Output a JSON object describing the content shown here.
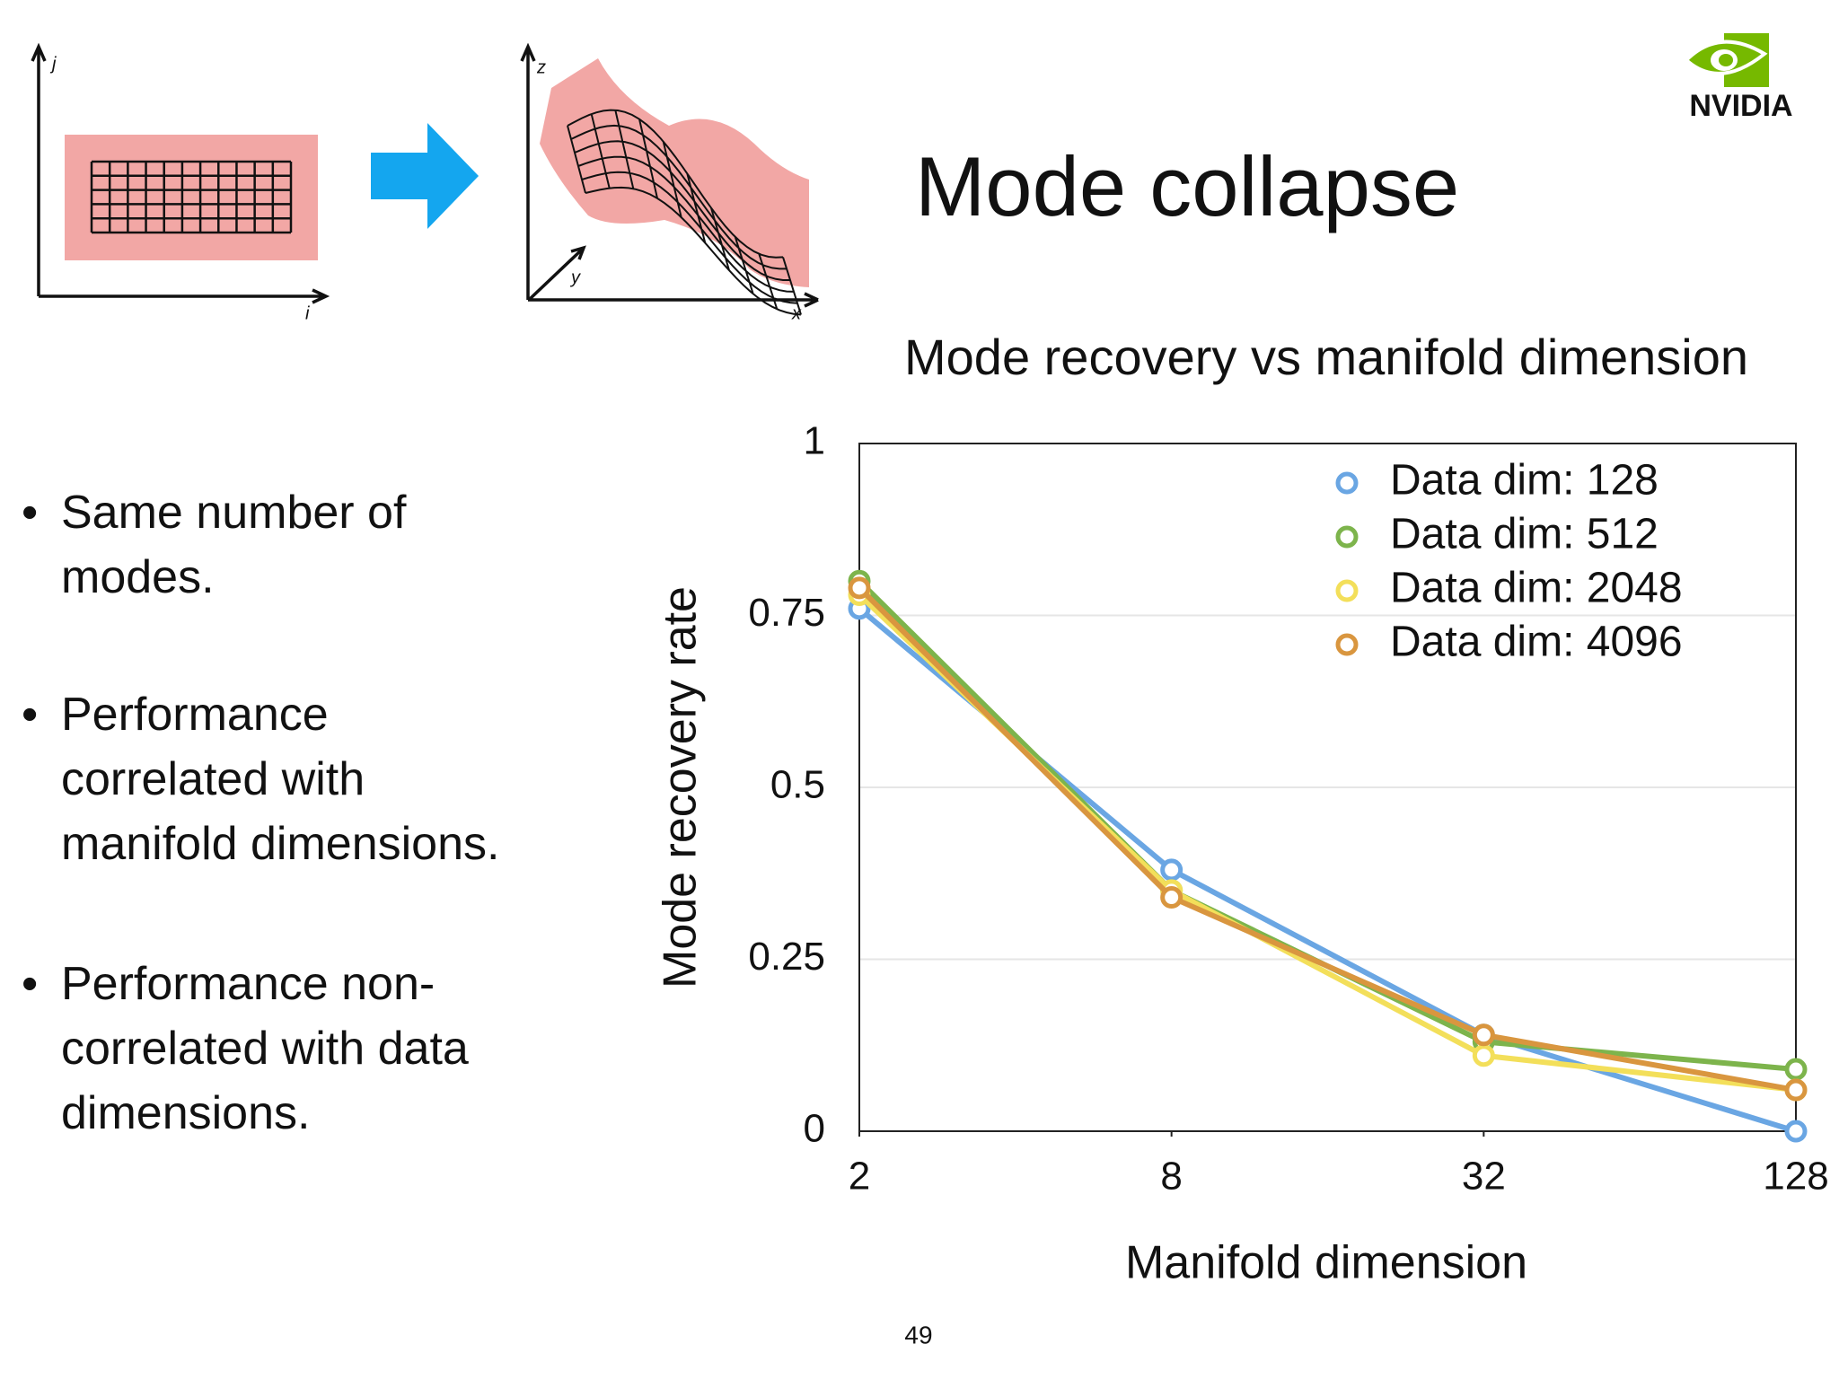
{
  "slide": {
    "title": "Mode collapse",
    "logo": "NVIDIA",
    "page_number": "49",
    "bullets": [
      [
        "Same number of",
        "modes."
      ],
      [
        "Performance",
        "correlated with",
        "manifold dimensions."
      ],
      [
        "Performance non-",
        "correlated with data",
        "dimensions."
      ]
    ],
    "diagram": {
      "left_axes": [
        "j",
        "i"
      ],
      "right_axes": [
        "z",
        "y",
        "x"
      ]
    }
  },
  "chart_data": {
    "type": "line",
    "title": "Mode recovery vs manifold dimension",
    "x_label": "Manifold dimension",
    "y_label": "Mode recovery rate",
    "x": [
      2,
      8,
      32,
      128
    ],
    "xlim": [
      2,
      128
    ],
    "xticks": [
      2,
      8,
      32,
      128
    ],
    "xlog": true,
    "ylim": [
      0,
      1
    ],
    "yticks": [
      0,
      0.25,
      0.5,
      0.75,
      1
    ],
    "grid": true,
    "legend": "upper right",
    "series": [
      {
        "name": "Data dim: 128",
        "color": "#6aa6e3",
        "values": [
          0.76,
          0.38,
          0.14,
          0.0
        ]
      },
      {
        "name": "Data dim: 512",
        "color": "#7db44c",
        "values": [
          0.8,
          0.35,
          0.13,
          0.09
        ]
      },
      {
        "name": "Data dim: 2048",
        "color": "#f3df5a",
        "values": [
          0.78,
          0.35,
          0.11,
          0.06
        ]
      },
      {
        "name": "Data dim: 4096",
        "color": "#d9963f",
        "values": [
          0.79,
          0.34,
          0.14,
          0.06
        ]
      }
    ]
  }
}
